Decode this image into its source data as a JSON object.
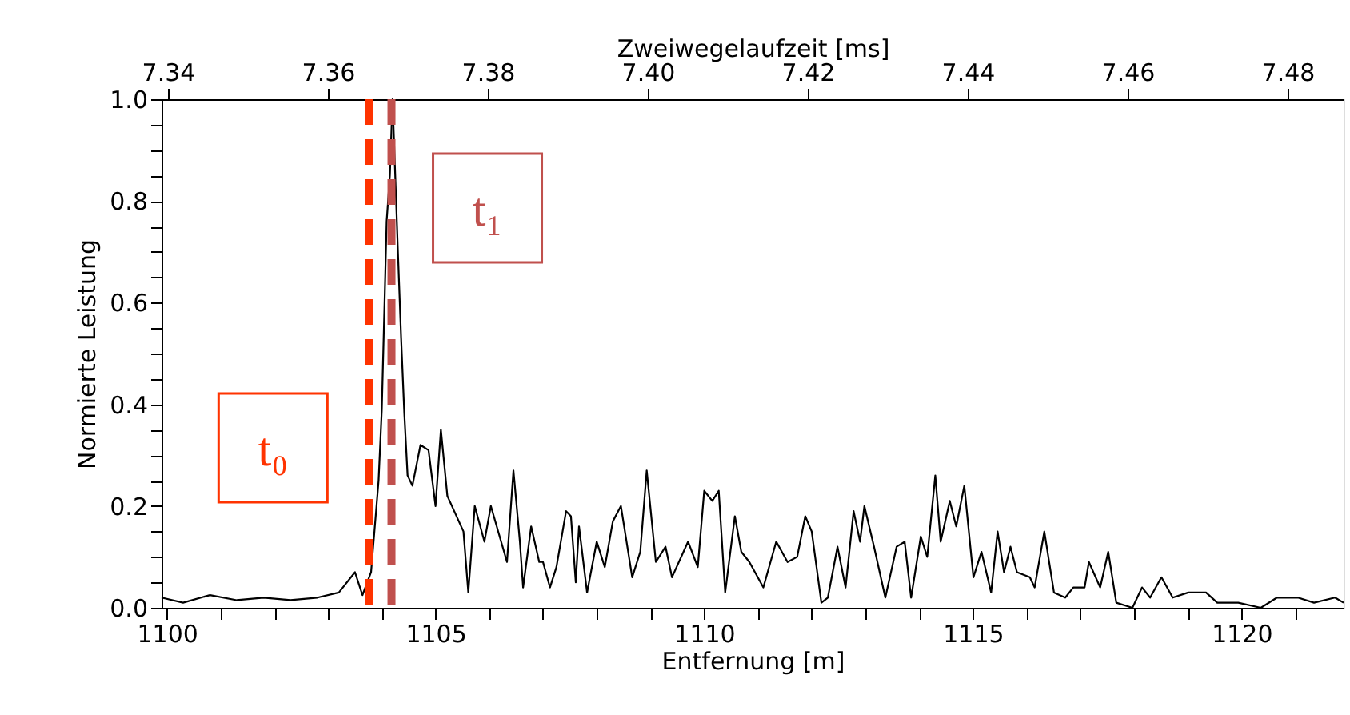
{
  "chart_data": {
    "type": "line",
    "xlabel": "Entfernung [m]",
    "ylabel": "Normierte Leistung",
    "x2label": "Zweiwegelaufzeit [ms]",
    "xlim": [
      1099.9,
      1121.9
    ],
    "ylim": [
      0,
      1.0
    ],
    "x2lim": [
      7.3392,
      7.487
    ],
    "xticks": [
      1100,
      {
        "value": 1101,
        "label": null
      },
      {
        "value": 1102,
        "label": null
      },
      {
        "value": 1103,
        "label": null
      },
      {
        "value": 1104,
        "label": null
      },
      1105,
      {
        "value": 1106,
        "label": null
      },
      {
        "value": 1107,
        "label": null
      },
      {
        "value": 1108,
        "label": null
      },
      {
        "value": 1109,
        "label": null
      },
      1110,
      {
        "value": 1111,
        "label": null
      },
      {
        "value": 1112,
        "label": null
      },
      {
        "value": 1113,
        "label": null
      },
      {
        "value": 1114,
        "label": null
      },
      1115,
      {
        "value": 1116,
        "label": null
      },
      {
        "value": 1117,
        "label": null
      },
      {
        "value": 1118,
        "label": null
      },
      {
        "value": 1119,
        "label": null
      },
      1120,
      {
        "value": 1121,
        "label": null
      }
    ],
    "x2ticks": [
      7.34,
      7.36,
      7.38,
      {
        "value": 7.4,
        "label": "7.40"
      },
      7.42,
      7.44,
      7.46,
      7.48
    ],
    "yticks": [
      {
        "value": 0,
        "label": "0.0"
      },
      {
        "value": 0.05,
        "label": null
      },
      {
        "value": 0.1,
        "label": null
      },
      {
        "value": 0.15,
        "label": null
      },
      0.2,
      {
        "value": 0.25,
        "label": null
      },
      {
        "value": 0.3,
        "label": null
      },
      {
        "value": 0.35,
        "label": null
      },
      0.4,
      {
        "value": 0.45,
        "label": null
      },
      {
        "value": 0.5,
        "label": null
      },
      {
        "value": 0.55,
        "label": null
      },
      0.6,
      {
        "value": 0.65,
        "label": null
      },
      {
        "value": 0.7,
        "label": null
      },
      {
        "value": 0.75,
        "label": null
      },
      0.8,
      {
        "value": 0.85,
        "label": null
      },
      {
        "value": 0.9,
        "label": null
      },
      {
        "value": 0.95,
        "label": null
      },
      {
        "value": 1.0,
        "label": "1.0"
      }
    ],
    "grid": false,
    "legend": false,
    "marker": "none",
    "line_style": "solid",
    "ref_lines": [
      {
        "axis": "x",
        "value": 1103.76,
        "label": "t₀",
        "color": "#ff3300",
        "line_style": "dashed"
      },
      {
        "axis": "x",
        "value": 1104.18,
        "label": "t₁",
        "color": "#c0504d",
        "line_style": "dashed"
      }
    ],
    "series": [
      {
        "color": "#000000",
        "x": [
          1099.9,
          1100.3,
          1100.8,
          1101.3,
          1101.8,
          1102.3,
          1102.8,
          1103.2,
          1103.5,
          1103.64,
          1103.8,
          1103.94,
          1104.0,
          1104.09,
          1104.15,
          1104.2,
          1104.3,
          1104.36,
          1104.42,
          1104.48,
          1104.57,
          1104.72,
          1104.87,
          1105.0,
          1105.1,
          1105.22,
          1105.52,
          1105.61,
          1105.73,
          1105.91,
          1106.03,
          1106.33,
          1106.45,
          1106.57,
          1106.63,
          1106.78,
          1106.93,
          1107.0,
          1107.13,
          1107.25,
          1107.43,
          1107.52,
          1107.61,
          1107.67,
          1107.82,
          1108.0,
          1108.15,
          1108.3,
          1108.45,
          1108.66,
          1108.81,
          1108.93,
          1109.1,
          1109.28,
          1109.4,
          1109.7,
          1109.88,
          1110.0,
          1110.15,
          1110.27,
          1110.39,
          1110.57,
          1110.69,
          1110.84,
          1111.1,
          1111.34,
          1111.55,
          1111.73,
          1111.88,
          1112.0,
          1112.18,
          1112.3,
          1112.48,
          1112.63,
          1112.78,
          1112.9,
          1112.98,
          1113.16,
          1113.37,
          1113.58,
          1113.73,
          1113.85,
          1114.03,
          1114.15,
          1114.3,
          1114.4,
          1114.57,
          1114.69,
          1114.84,
          1115.01,
          1115.16,
          1115.34,
          1115.46,
          1115.58,
          1115.7,
          1115.82,
          1116.06,
          1116.15,
          1116.33,
          1116.51,
          1116.72,
          1116.87,
          1117.08,
          1117.16,
          1117.37,
          1117.52,
          1117.67,
          1117.97,
          1118.15,
          1118.3,
          1118.51,
          1118.72,
          1119.01,
          1119.34,
          1119.55,
          1119.94,
          1120.36,
          1120.66,
          1121.05,
          1121.35,
          1121.74,
          1121.9
        ],
        "values": [
          0.02,
          0.01,
          0.025,
          0.015,
          0.02,
          0.015,
          0.02,
          0.03,
          0.07,
          0.025,
          0.07,
          0.25,
          0.39,
          0.76,
          0.85,
          1.0,
          0.7,
          0.53,
          0.38,
          0.26,
          0.24,
          0.32,
          0.31,
          0.2,
          0.35,
          0.22,
          0.15,
          0.03,
          0.2,
          0.13,
          0.2,
          0.09,
          0.27,
          0.13,
          0.04,
          0.16,
          0.09,
          0.09,
          0.04,
          0.08,
          0.19,
          0.18,
          0.05,
          0.16,
          0.03,
          0.13,
          0.08,
          0.17,
          0.2,
          0.06,
          0.11,
          0.27,
          0.09,
          0.12,
          0.06,
          0.13,
          0.08,
          0.23,
          0.21,
          0.23,
          0.03,
          0.18,
          0.11,
          0.09,
          0.04,
          0.13,
          0.09,
          0.1,
          0.18,
          0.15,
          0.01,
          0.02,
          0.12,
          0.04,
          0.19,
          0.13,
          0.2,
          0.12,
          0.02,
          0.12,
          0.13,
          0.02,
          0.14,
          0.1,
          0.26,
          0.13,
          0.21,
          0.16,
          0.24,
          0.06,
          0.11,
          0.03,
          0.15,
          0.07,
          0.12,
          0.07,
          0.06,
          0.04,
          0.15,
          0.03,
          0.02,
          0.04,
          0.04,
          0.09,
          0.04,
          0.11,
          0.01,
          0.0,
          0.04,
          0.02,
          0.06,
          0.02,
          0.03,
          0.03,
          0.01,
          0.01,
          0.0,
          0.02,
          0.02,
          0.01,
          0.02,
          0.01
        ]
      }
    ]
  }
}
